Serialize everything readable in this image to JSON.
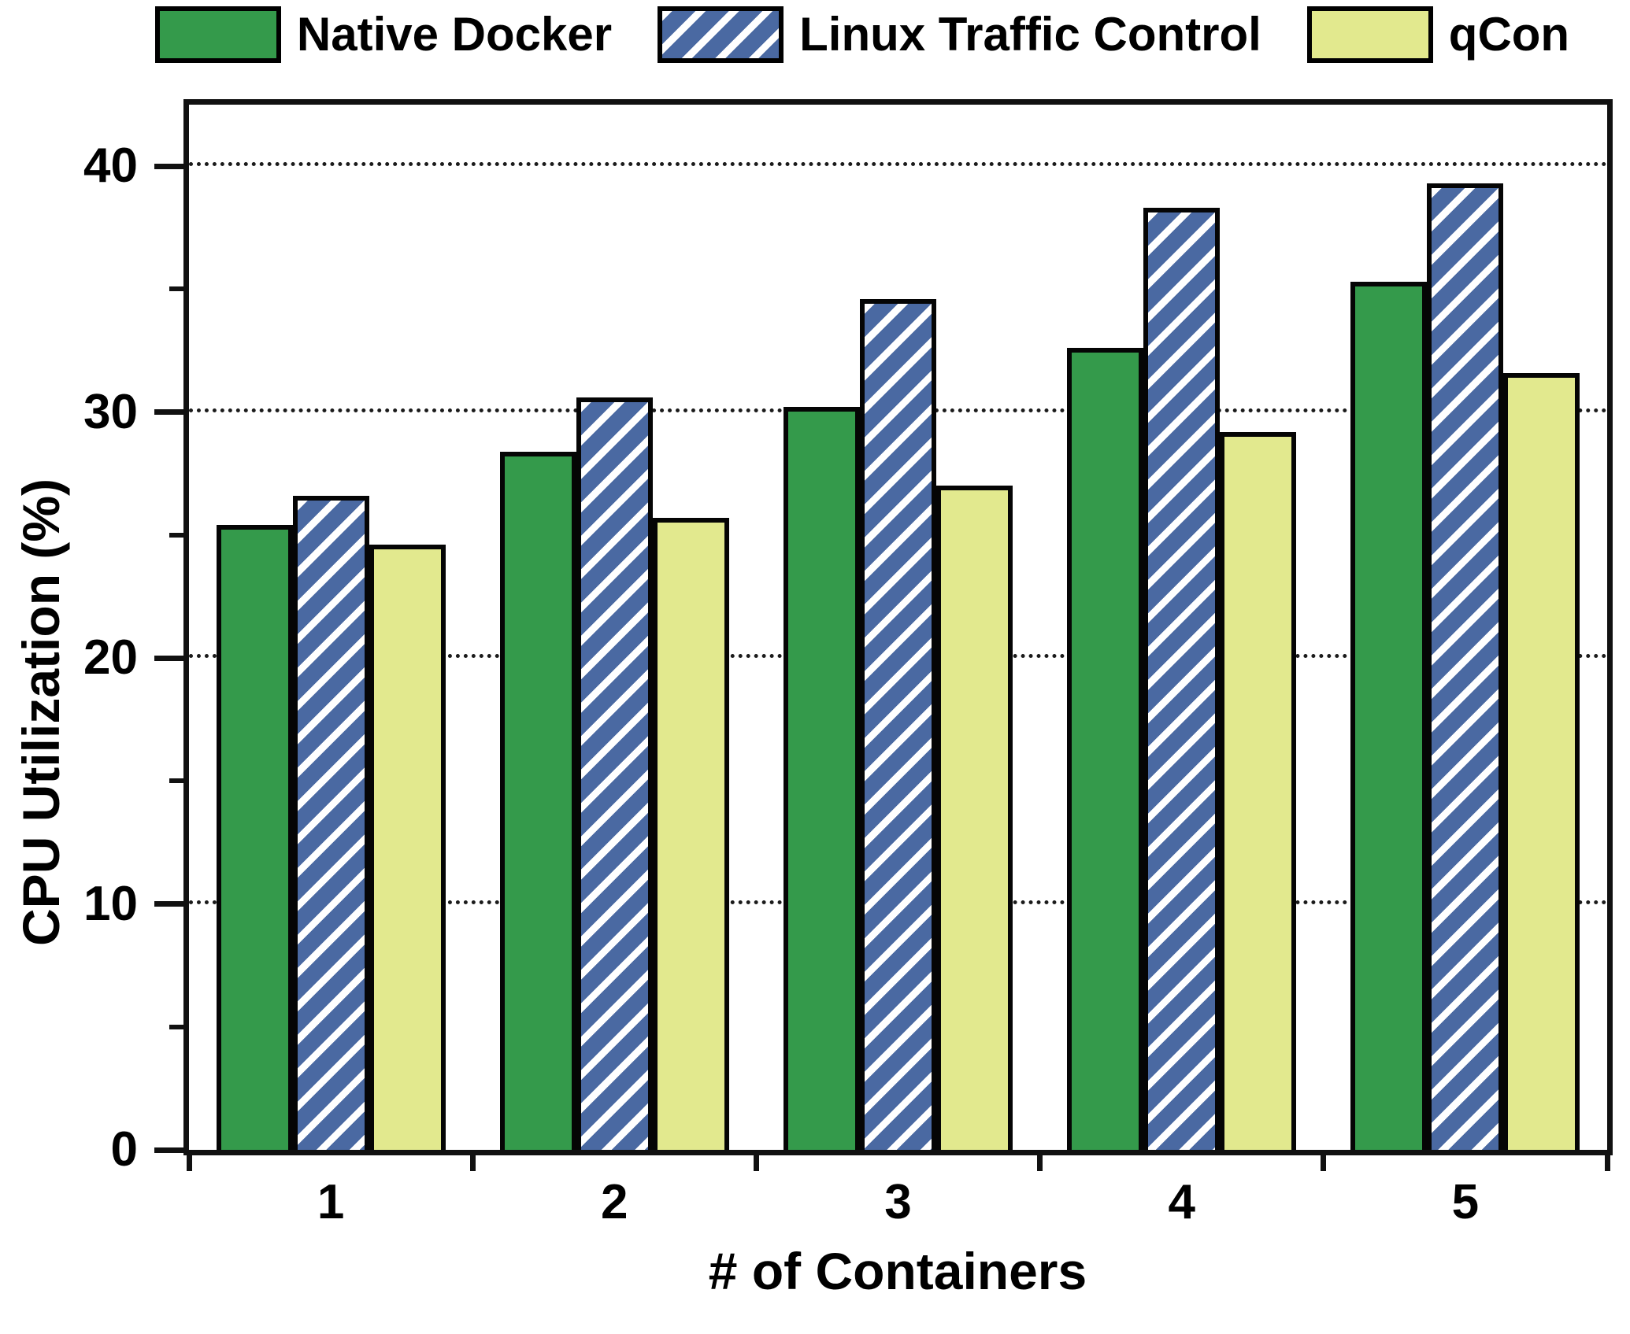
{
  "chart_data": {
    "type": "bar",
    "title": "",
    "xlabel": "# of Containers",
    "ylabel": "CPU Utilization (%)",
    "categories": [
      "1",
      "2",
      "3",
      "4",
      "5"
    ],
    "series": [
      {
        "name": "Native Docker",
        "color": "#349a4b",
        "pattern": "solid",
        "values": [
          25.4,
          28.4,
          30.2,
          32.6,
          35.3
        ]
      },
      {
        "name": "Linux Traffic Control",
        "color": "#4a69a2",
        "pattern": "diagonal-hatch",
        "hatch_color": "#ffffff",
        "values": [
          26.6,
          30.6,
          34.6,
          38.3,
          39.3
        ]
      },
      {
        "name": "qCon",
        "color": "#e2e98e",
        "pattern": "solid",
        "values": [
          24.6,
          25.7,
          27.0,
          29.2,
          31.6
        ]
      }
    ],
    "ylim": [
      0,
      42.5
    ],
    "yticks_major": [
      0,
      10,
      20,
      30,
      40
    ],
    "yticks_minor": [
      5,
      15,
      25,
      35
    ],
    "grid": "horizontal dotted lines at major y ticks (10,20,30,40)",
    "legend_position": "top",
    "bar_edge_color": "#050505",
    "frame_color": "#111111"
  }
}
